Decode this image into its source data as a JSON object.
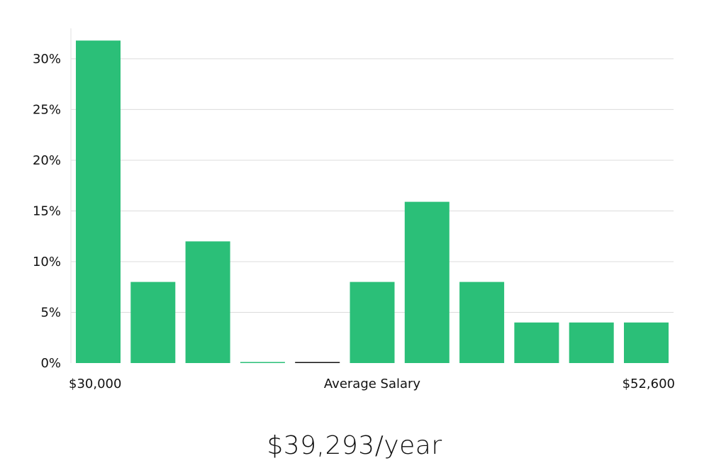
{
  "chart_data": {
    "type": "bar",
    "xlabel": "Average Salary",
    "x_range_labels": [
      "$30,000",
      "$52,600"
    ],
    "ylim": [
      0,
      33
    ],
    "y_ticks": [
      0,
      5,
      10,
      15,
      20,
      25,
      30
    ],
    "y_tick_format": "percent",
    "grid": true,
    "bar_color": "#2bbf78",
    "zero_bar_colors": [
      "#2bbf78",
      "#111111"
    ],
    "values": [
      31.8,
      8.0,
      12.0,
      0,
      0,
      8.0,
      15.9,
      8.0,
      4.0,
      4.0,
      4.0
    ]
  },
  "summary": {
    "salary_text": "$39,293/year"
  }
}
